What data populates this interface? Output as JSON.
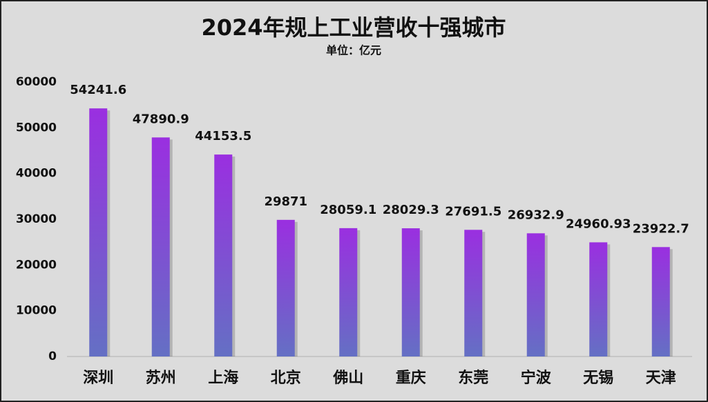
{
  "chart_data": {
    "type": "bar",
    "title": "2024年规上工业营收十强城市",
    "subtitle": "单位：亿元",
    "categories": [
      "深圳",
      "苏州",
      "上海",
      "北京",
      "佛山",
      "重庆",
      "东莞",
      "宁波",
      "无锡",
      "天津"
    ],
    "values": [
      54241.6,
      47890.9,
      44153.5,
      29871,
      28059.1,
      28029.3,
      27691.5,
      26932.9,
      24960.93,
      23922.7
    ],
    "ylim": [
      0,
      60000
    ],
    "yticks": [
      0,
      10000,
      20000,
      30000,
      40000,
      50000,
      60000
    ],
    "grid": false
  }
}
